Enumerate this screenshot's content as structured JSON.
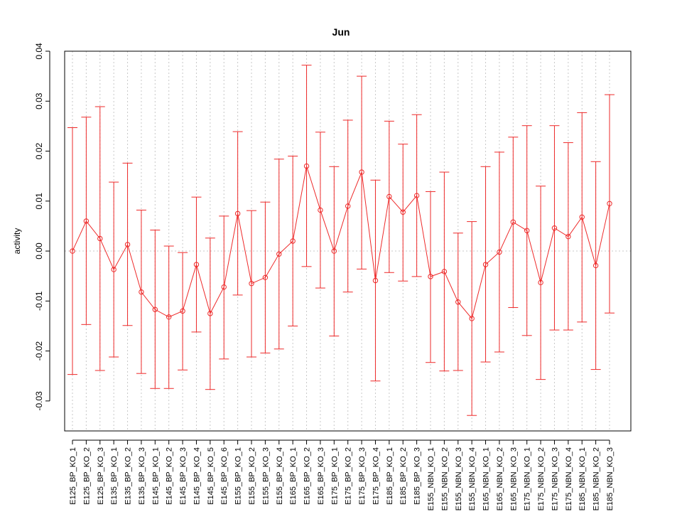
{
  "chart_data": {
    "type": "line",
    "title": "Jun",
    "xlabel": "",
    "ylabel": "activity",
    "ylim": [
      -0.036,
      0.04
    ],
    "yticks": [
      -0.03,
      -0.02,
      -0.01,
      0.0,
      0.01,
      0.02,
      0.03,
      0.04
    ],
    "ytick_labels": [
      "-0.03",
      "-0.02",
      "-0.01",
      "0.00",
      "0.01",
      "0.02",
      "0.03",
      "0.04"
    ],
    "grid": true,
    "color": "#ee2a2a",
    "categories": [
      "E125_BP_KO_1",
      "E125_BP_KO_2",
      "E125_BP_KO_3",
      "E135_BP_KO_1",
      "E135_BP_KO_2",
      "E135_BP_KO_3",
      "E145_BP_KO_1",
      "E145_BP_KO_2",
      "E145_BP_KO_3",
      "E145_BP_KO_4",
      "E145_BP_KO_5",
      "E145_BP_KO_6",
      "E155_BP_KO_1",
      "E155_BP_KO_2",
      "E155_BP_KO_3",
      "E155_BP_KO_4",
      "E165_BP_KO_1",
      "E165_BP_KO_2",
      "E165_BP_KO_3",
      "E175_BP_KO_1",
      "E175_BP_KO_2",
      "E175_BP_KO_3",
      "E175_BP_KO_4",
      "E185_BP_KO_1",
      "E185_BP_KO_2",
      "E185_BP_KO_3",
      "E155_NBN_KO_1",
      "E155_NBN_KO_2",
      "E155_NBN_KO_3",
      "E155_NBN_KO_4",
      "E165_NBN_KO_1",
      "E165_NBN_KO_2",
      "E165_NBN_KO_3",
      "E175_NBN_KO_1",
      "E175_NBN_KO_2",
      "E175_NBN_KO_3",
      "E175_NBN_KO_4",
      "E185_NBN_KO_1",
      "E185_NBN_KO_2",
      "E185_NBN_KO_3"
    ],
    "values": [
      0.0,
      0.006,
      0.0025,
      -0.0037,
      0.0013,
      -0.0082,
      -0.0117,
      -0.0132,
      -0.012,
      -0.0027,
      -0.0125,
      -0.0072,
      0.0075,
      -0.0065,
      -0.0053,
      -0.0006,
      0.002,
      0.017,
      0.0082,
      0.0,
      0.009,
      0.0158,
      -0.0059,
      0.0109,
      0.0078,
      0.0111,
      -0.0051,
      -0.0041,
      -0.0102,
      -0.0135,
      -0.0027,
      -0.0002,
      0.0058,
      0.0041,
      -0.0063,
      0.0046,
      0.0029,
      0.0068,
      -0.0029,
      0.0095
    ],
    "upper": [
      0.0247,
      0.0268,
      0.0289,
      0.0138,
      0.0176,
      0.0082,
      0.0042,
      0.001,
      -0.0003,
      0.0108,
      0.0026,
      0.007,
      0.0239,
      0.0081,
      0.0098,
      0.0184,
      0.019,
      0.0372,
      0.0238,
      0.0169,
      0.0262,
      0.035,
      0.0142,
      0.026,
      0.0214,
      0.0273,
      0.0119,
      0.0158,
      0.0036,
      0.0059,
      0.0169,
      0.0198,
      0.0228,
      0.0251,
      0.013,
      0.0251,
      0.0217,
      0.0277,
      0.0179,
      0.0313
    ],
    "lower": [
      -0.0247,
      -0.0147,
      -0.0239,
      -0.0212,
      -0.0149,
      -0.0245,
      -0.0275,
      -0.0275,
      -0.0238,
      -0.0162,
      -0.0277,
      -0.0216,
      -0.0088,
      -0.0212,
      -0.0204,
      -0.0196,
      -0.015,
      -0.0031,
      -0.0074,
      -0.017,
      -0.0082,
      -0.0036,
      -0.026,
      -0.0043,
      -0.006,
      -0.0051,
      -0.0223,
      -0.024,
      -0.0239,
      -0.0329,
      -0.0222,
      -0.0202,
      -0.0113,
      -0.0169,
      -0.0257,
      -0.0158,
      -0.0158,
      -0.0142,
      -0.0237,
      -0.0124
    ]
  }
}
